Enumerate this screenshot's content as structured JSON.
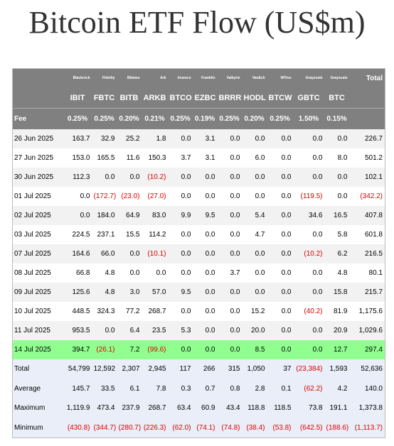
{
  "title": "Bitcoin ETF Flow (US$m)",
  "table": {
    "issuers": [
      "Blackrock",
      "Fidelity",
      "Bitwise",
      "Ark",
      "Invesco",
      "Franklin",
      "Valkyrie",
      "VanEck",
      "WTree",
      "Grayscale",
      "Grayscale"
    ],
    "total_header": "Total",
    "tickers": [
      "IBIT",
      "FBTC",
      "BITB",
      "ARKB",
      "BTCO",
      "EZBC",
      "BRRR",
      "HODL",
      "BTCW",
      "GBTC",
      "BTC"
    ],
    "fee_label": "Fee",
    "fees": [
      "0.25%",
      "0.25%",
      "0.20%",
      "0.21%",
      "0.25%",
      "0.19%",
      "0.25%",
      "0.20%",
      "0.25%",
      "1.50%",
      "0.15%"
    ],
    "rows": [
      [
        "26 Jun 2025",
        "163.7",
        "32.9",
        "25.2",
        "1.8",
        "0.0",
        "3.1",
        "0.0",
        "0.0",
        "0.0",
        "0.0",
        "0.0",
        "226.7"
      ],
      [
        "27 Jun 2025",
        "153.0",
        "165.5",
        "11.6",
        "150.3",
        "3.7",
        "3.1",
        "0.0",
        "6.0",
        "0.0",
        "0.0",
        "8.0",
        "501.2"
      ],
      [
        "30 Jun 2025",
        "112.3",
        "0.0",
        "0.0",
        "(10.2)",
        "0.0",
        "0.0",
        "0.0",
        "0.0",
        "0.0",
        "0.0",
        "0.0",
        "102.1"
      ],
      [
        "01 Jul 2025",
        "0.0",
        "(172.7)",
        "(23.0)",
        "(27.0)",
        "0.0",
        "0.0",
        "0.0",
        "0.0",
        "0.0",
        "(119.5)",
        "0.0",
        "(342.2)"
      ],
      [
        "02 Jul 2025",
        "0.0",
        "184.0",
        "64.9",
        "83.0",
        "9.9",
        "9.5",
        "0.0",
        "5.4",
        "0.0",
        "34.6",
        "16.5",
        "407.8"
      ],
      [
        "03 Jul 2025",
        "224.5",
        "237.1",
        "15.5",
        "114.2",
        "0.0",
        "0.0",
        "0.0",
        "4.7",
        "0.0",
        "0.0",
        "5.8",
        "601.8"
      ],
      [
        "07 Jul 2025",
        "164.6",
        "66.0",
        "0.0",
        "(10.1)",
        "0.0",
        "0.0",
        "0.0",
        "0.0",
        "0.0",
        "(10.2)",
        "6.2",
        "216.5"
      ],
      [
        "08 Jul 2025",
        "66.8",
        "4.8",
        "0.0",
        "0.0",
        "0.0",
        "0.0",
        "3.7",
        "0.0",
        "0.0",
        "0.0",
        "4.8",
        "80.1"
      ],
      [
        "09 Jul 2025",
        "125.6",
        "4.8",
        "3.0",
        "57.0",
        "9.5",
        "0.0",
        "0.0",
        "0.0",
        "0.0",
        "0.0",
        "15.8",
        "215.7"
      ],
      [
        "10 Jul 2025",
        "448.5",
        "324.3",
        "77.2",
        "268.7",
        "0.0",
        "0.0",
        "0.0",
        "15.2",
        "0.0",
        "(40.2)",
        "81.9",
        "1,175.6"
      ],
      [
        "11 Jul 2025",
        "953.5",
        "0.0",
        "6.4",
        "23.5",
        "5.3",
        "0.0",
        "0.0",
        "20.0",
        "0.0",
        "0.0",
        "20.9",
        "1,029.6"
      ],
      [
        "14 Jul 2025",
        "394.7",
        "(26.1)",
        "7.2",
        "(99.6)",
        "0.0",
        "0.0",
        "0.0",
        "8.5",
        "0.0",
        "0.0",
        "12.7",
        "297.4"
      ]
    ],
    "summary": [
      [
        "Total",
        "54,799",
        "12,592",
        "2,307",
        "2,945",
        "117",
        "266",
        "315",
        "1,050",
        "37",
        "(23,384)",
        "1,593",
        "52,636"
      ],
      [
        "Average",
        "145.7",
        "33.5",
        "6.1",
        "7.8",
        "0.3",
        "0.7",
        "0.8",
        "2.8",
        "0.1",
        "(62.2)",
        "4.2",
        "140.0"
      ],
      [
        "Maximum",
        "1,119.9",
        "473.4",
        "237.9",
        "268.7",
        "63.4",
        "60.9",
        "43.4",
        "118.8",
        "118.5",
        "73.8",
        "191.1",
        "1,373.8"
      ],
      [
        "Minimum",
        "(430.8)",
        "(344.7)",
        "(280.7)",
        "(226.3)",
        "(62.0)",
        "(74.1)",
        "(74.8)",
        "(38.4)",
        "(53.8)",
        "(642.5)",
        "(188.6)",
        "(1,113.7)"
      ]
    ]
  }
}
